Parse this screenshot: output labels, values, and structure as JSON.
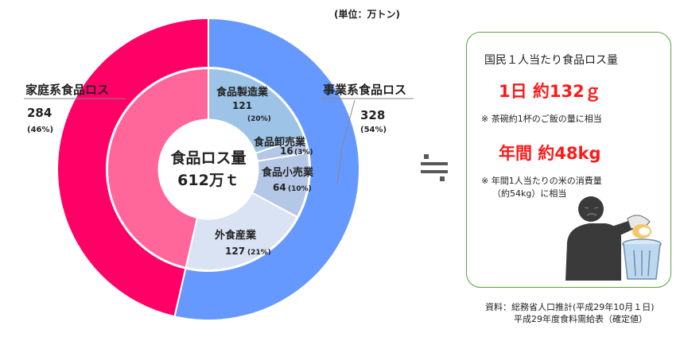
{
  "unit_label": "(単位：万トン)",
  "chart_data": {
    "type": "pie",
    "center": {
      "line1": "食品ロス量",
      "line2": "612万ｔ"
    },
    "outer_ring": [
      {
        "name": "事業系食品ロス",
        "value": 328,
        "percent": "(54%)",
        "color": "#6699ff"
      },
      {
        "name": "家庭系食品ロス",
        "value": 284,
        "percent": "(46%)",
        "color": "#ff0066"
      }
    ],
    "inner_ring": [
      {
        "name": "食品製造業",
        "value": 121,
        "percent": "(20%)",
        "color": "#9dc3e6"
      },
      {
        "name": "食品卸売業",
        "value": 16,
        "percent": "(3%)",
        "color": "#b4c7e7"
      },
      {
        "name": "食品小売業",
        "value": 64,
        "percent": "(10%)",
        "color": "#b4c7e7"
      },
      {
        "name": "外食産業",
        "value": 127,
        "percent": "(21%)",
        "color": "#dae3f3"
      },
      {
        "name": "",
        "value": 284,
        "percent": "",
        "color": "#ff6699"
      }
    ]
  },
  "approx_symbol": "≒",
  "info_box": {
    "title": "国民１人当たり食品ロス量",
    "day_line": "1日 約132ｇ",
    "day_note": "※ 茶碗約1杯のご飯の量に相当",
    "year_line": "年間 約48kg",
    "year_note_1": "※ 年間1人当たりの米の消費量",
    "year_note_2": "（約54kg）に相当"
  },
  "source": {
    "line1": "資料：総務省人口推計(平成29年10月１日)",
    "line2": "平成29年度食料需給表（確定値）"
  },
  "colors": {
    "box_border": "#5aa23c",
    "highlight": "#ff1a1a",
    "figure": "#3a3a3a",
    "bin": "#bcd7ee"
  }
}
